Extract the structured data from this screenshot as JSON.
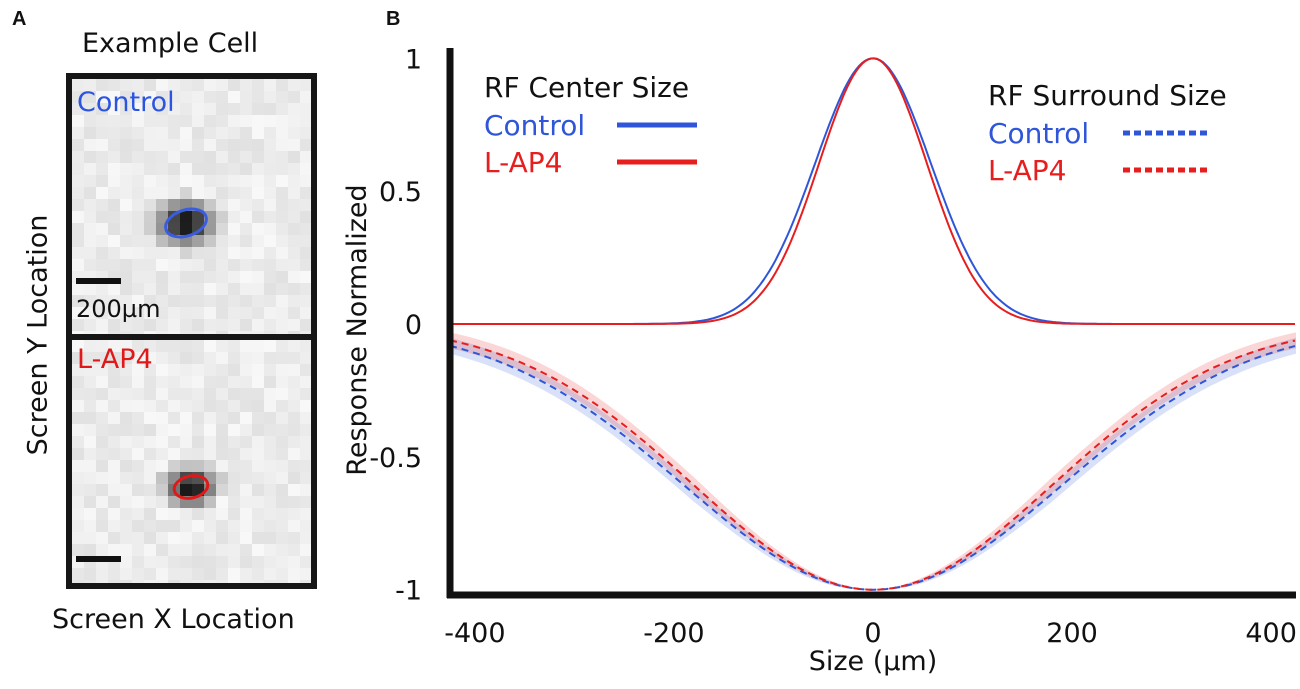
{
  "panel_a": {
    "letter": "A",
    "title": "Example Cell",
    "ylabel": "Screen Y Location",
    "xlabel": "Screen X Location",
    "top_image": {
      "label": "Control",
      "label_color": "#2b55e0",
      "ellipse_color": "#3a5de0",
      "scalebar_label": "200µm"
    },
    "bottom_image": {
      "label": "L-AP4",
      "label_color": "#e01818",
      "ellipse_color": "#e01818"
    }
  },
  "panel_b": {
    "letter": "B"
  },
  "colors": {
    "control": "#2f56d8",
    "lap4": "#e61e1e",
    "axis": "#111111"
  },
  "chart_data": {
    "type": "line",
    "title": "",
    "xlabel": "Size (µm)",
    "ylabel": "Response Normalized",
    "xlim": [
      -425,
      425
    ],
    "ylim": [
      -1.02,
      1.02
    ],
    "xticks": [
      -400,
      -200,
      0,
      200,
      400
    ],
    "yticks": [
      -1,
      -0.5,
      0,
      0.5,
      1
    ],
    "ytick_labels": [
      "-1",
      "-0.5",
      "0",
      "0.5",
      "1"
    ],
    "legend_center_title": "RF Center Size",
    "legend_surround_title": "RF Surround Size",
    "series": [
      {
        "name": "Control",
        "group": "RF Center Size",
        "style": "solid",
        "color": "#2f56d8",
        "peak": 1,
        "sigma": 58,
        "x": [
          -425,
          -300,
          -200,
          -150,
          -100,
          -50,
          0,
          50,
          100,
          150,
          200,
          300,
          425
        ],
        "y": [
          0,
          0,
          0,
          0.03,
          0.22,
          0.69,
          1,
          0.69,
          0.22,
          0.03,
          0,
          0,
          0
        ]
      },
      {
        "name": "L-AP4",
        "group": "RF Center Size",
        "style": "solid",
        "color": "#e61e1e",
        "peak": 1,
        "sigma": 54,
        "x": [
          -425,
          -300,
          -200,
          -150,
          -100,
          -50,
          0,
          50,
          100,
          150,
          200,
          300,
          425
        ],
        "y": [
          0,
          0,
          0,
          0.02,
          0.18,
          0.65,
          1,
          0.65,
          0.18,
          0.02,
          0,
          0,
          0
        ]
      },
      {
        "name": "Control",
        "group": "RF Surround Size",
        "style": "dashed",
        "color": "#2f56d8",
        "peak": -1,
        "sigma": 190,
        "x": [
          -425,
          -400,
          -300,
          -200,
          -100,
          0,
          100,
          200,
          300,
          400,
          425
        ],
        "y": [
          -0.08,
          -0.11,
          -0.29,
          -0.58,
          -0.87,
          -1,
          -0.87,
          -0.58,
          -0.29,
          -0.11,
          -0.08
        ]
      },
      {
        "name": "L-AP4",
        "group": "RF Surround Size",
        "style": "dashed",
        "color": "#e61e1e",
        "peak": -1,
        "sigma": 180,
        "x": [
          -425,
          -400,
          -300,
          -200,
          -100,
          0,
          100,
          200,
          300,
          400,
          425
        ],
        "y": [
          -0.06,
          -0.09,
          -0.25,
          -0.54,
          -0.86,
          -1,
          -0.86,
          -0.54,
          -0.25,
          -0.09,
          -0.06
        ]
      }
    ]
  }
}
